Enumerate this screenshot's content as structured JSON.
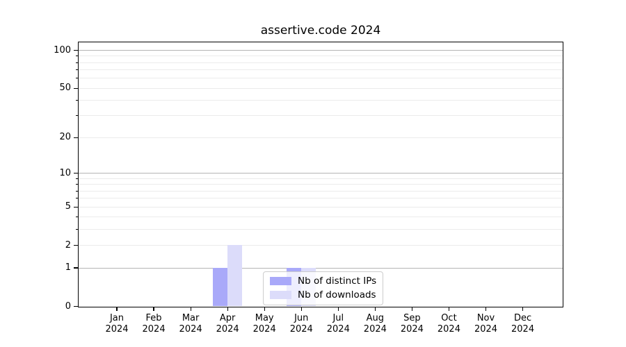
{
  "figure": {
    "title": "assertive.code 2024"
  },
  "chart_data": {
    "type": "bar",
    "title": "assertive.code 2024",
    "categories": [
      "Jan",
      "Feb",
      "Mar",
      "Apr",
      "May",
      "Jun",
      "Jul",
      "Aug",
      "Sep",
      "Oct",
      "Nov",
      "Dec"
    ],
    "year": "2024",
    "series": [
      {
        "name": "Nb of distinct IPs",
        "color": "#a9a9f9",
        "values": [
          0,
          0,
          0,
          1,
          0,
          1,
          0,
          0,
          0,
          0,
          0,
          0
        ]
      },
      {
        "name": "Nb of downloads",
        "color": "#dcdcfa",
        "values": [
          0,
          0,
          0,
          2,
          0,
          1,
          0,
          0,
          0,
          0,
          0,
          0
        ]
      }
    ],
    "y_scale": "log1p",
    "ylim": [
      0,
      115
    ],
    "yticks": [
      0,
      1,
      2,
      5,
      10,
      20,
      50,
      100
    ],
    "y_emphasized_ticks": [
      1,
      10,
      100
    ],
    "y_minor_gridlines": [
      3,
      4,
      6,
      7,
      8,
      9,
      30,
      40,
      60,
      70,
      80,
      90
    ],
    "grid": true,
    "legend": {
      "position": "inside-bottom-center",
      "entries": [
        "Nb of distinct IPs",
        "Nb of downloads"
      ]
    },
    "colors": {
      "bar_distinct_ips": "#a9a9f9",
      "bar_downloads": "#dcdcfa",
      "grid_major": "#b4b4b4",
      "grid_minor": "#ebebeb",
      "axis": "#000000",
      "legend_border": "#cccccc",
      "background": "#ffffff"
    }
  }
}
